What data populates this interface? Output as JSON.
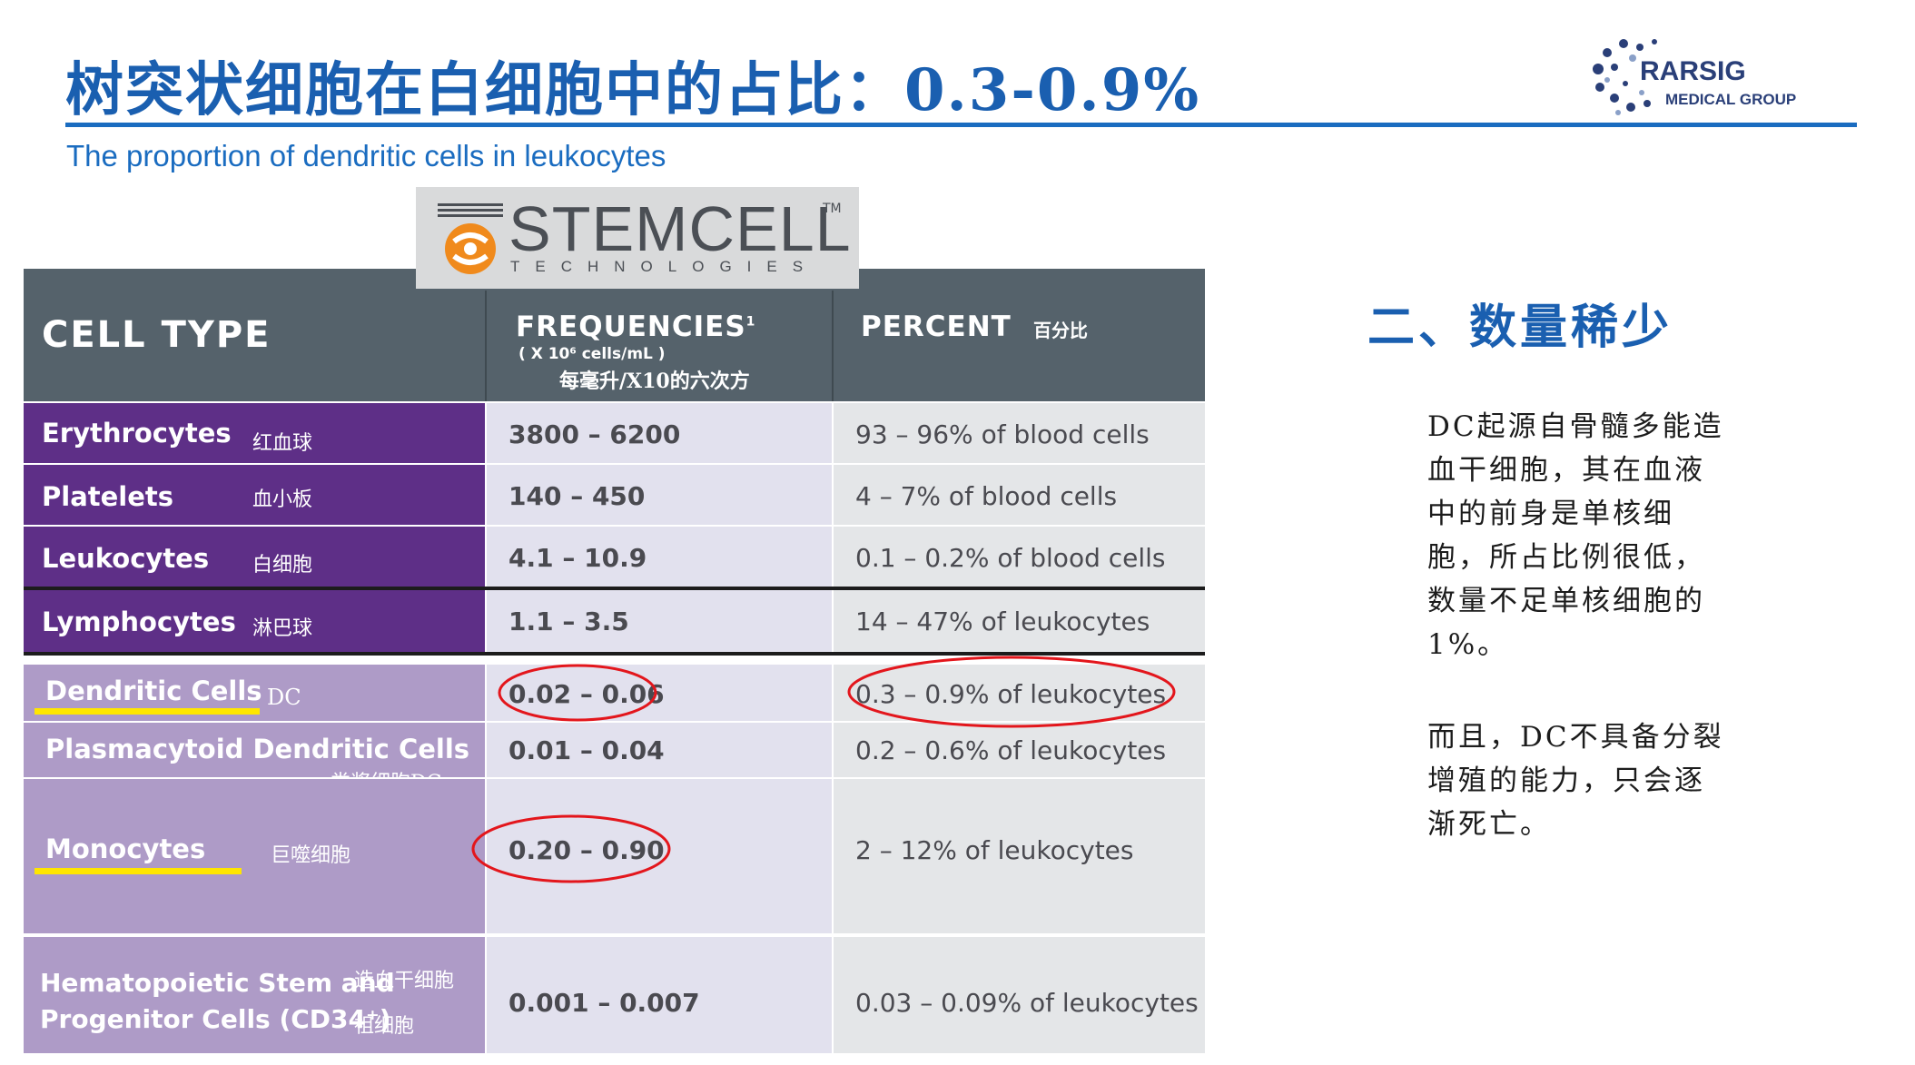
{
  "header": {
    "title": "树突状细胞在白细胞中的占比：0.3-0.9%",
    "subtitle": "The proportion of dendritic cells in leukocytes"
  },
  "logo_rarsig": {
    "line1": "RARSIG",
    "line2": "MEDICAL GROUP"
  },
  "logo_stemcell": {
    "word": "STEMCELL",
    "tm": "TM",
    "tagline": "TECHNOLOGIES"
  },
  "table": {
    "headers": {
      "cell_type": "CELL TYPE",
      "frequencies": "FREQUENCIES",
      "frequencies_sup": "1",
      "frequencies_unit": "( X 10⁶ cells/mL )",
      "frequencies_note": "每毫升/X10的六次方",
      "percent": "PERCENT",
      "percent_note": "百分比"
    },
    "rows": [
      {
        "name": "Erythrocytes",
        "cn": "红血球",
        "freq": "3800 – 6200",
        "pct": "93 – 96% of blood cells"
      },
      {
        "name": "Platelets",
        "cn": "血小板",
        "freq": "140 – 450",
        "pct": "4 – 7% of blood cells"
      },
      {
        "name": "Leukocytes",
        "cn": "白细胞",
        "freq": "4.1 – 10.9",
        "pct": "0.1 – 0.2% of blood cells"
      },
      {
        "name": "Lymphocytes",
        "cn": "淋巴球",
        "freq": "1.1 – 3.5",
        "pct": "14 – 47% of leukocytes"
      },
      {
        "name": "Dendritic Cells",
        "cn": "DC",
        "freq": "0.02 – 0.06",
        "pct": "0.3 – 0.9% of leukocytes"
      },
      {
        "name": "Plasmacytoid Dendritic Cells",
        "cn": "类浆细胞DC",
        "freq": "0.01 – 0.04",
        "pct": "0.2 – 0.6% of leukocytes"
      },
      {
        "name": "Monocytes",
        "cn": "巨噬细胞",
        "freq": "0.20 – 0.90",
        "pct": "2 – 12% of leukocytes"
      },
      {
        "name_line1": "Hematopoietic Stem and",
        "name_line2": "Progenitor Cells (CD34⁺)",
        "cn1": "造血干细胞",
        "cn2": "祖细胞",
        "freq": "0.001 – 0.007",
        "pct": "0.03 – 0.09% of leukocytes"
      }
    ]
  },
  "side": {
    "heading": "二、数量稀少",
    "para1": "DC起源自骨髓多能造血干细胞，其在血液中的前身是单核细胞，所占比例很低，数量不足单核细胞的1%。",
    "para2": "而且，DC不具备分裂增殖的能力，只会逐渐死亡。"
  },
  "colors": {
    "title_blue": "#1a5fb0",
    "header_gray": "#55626b",
    "dark_purple": "#5e2f87",
    "light_purple": "#ae9bc7",
    "highlight_yellow": "#ffe600",
    "circle_red": "#e3161c"
  }
}
